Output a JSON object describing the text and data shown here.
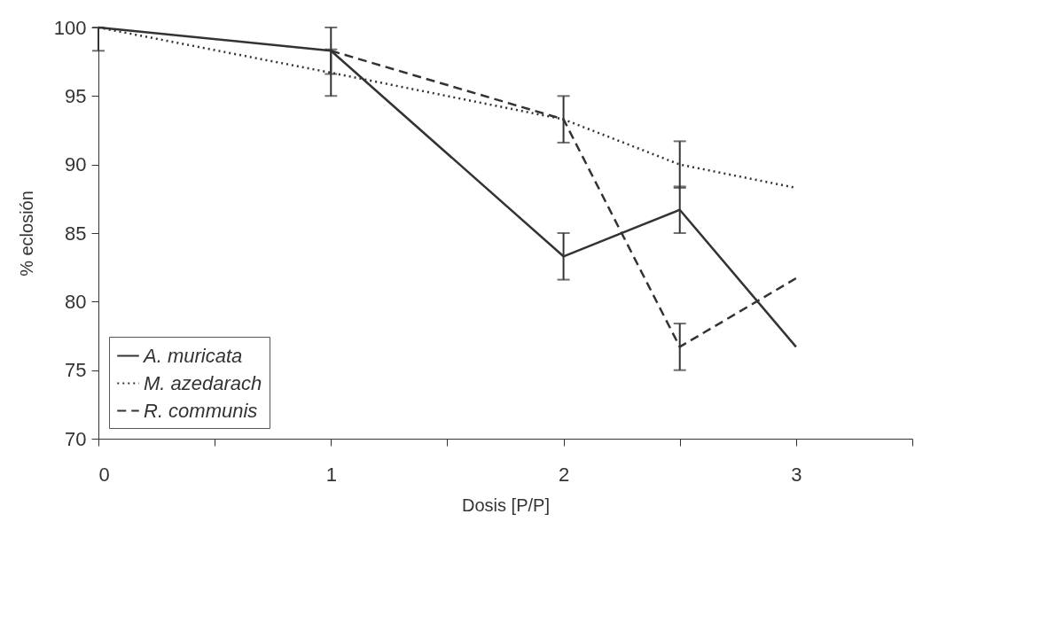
{
  "chart_data": {
    "type": "line",
    "xlabel": "Dosis [P/P]",
    "ylabel": "% eclosión",
    "x": [
      0,
      1,
      2,
      2.5,
      3
    ],
    "series": [
      {
        "name": "A. muricata",
        "color": "#333333",
        "line_style": "solid",
        "values": [
          100,
          98.3,
          83.3,
          86.7,
          76.7
        ],
        "errors": [
          null,
          1.7,
          1.7,
          1.7,
          null
        ]
      },
      {
        "name": "M. azedarach",
        "color": "#333333",
        "line_style": "dotted",
        "values": [
          100,
          96.7,
          93.3,
          90,
          88.3
        ],
        "errors": [
          [
            98.3,
            100
          ],
          1.7,
          null,
          1.7,
          null
        ]
      },
      {
        "name": "R. communis",
        "color": "#333333",
        "line_style": "dashed",
        "values": [
          null,
          98.3,
          93.3,
          76.7,
          81.7
        ],
        "errors": [
          null,
          null,
          1.7,
          1.7,
          null
        ]
      }
    ],
    "xlim": [
      0,
      3.5
    ],
    "xticks": [
      0,
      {
        "value": 0.5,
        "label": null
      },
      1,
      {
        "value": 1.5,
        "label": null
      },
      2,
      {
        "value": 2.5,
        "label": null
      },
      3,
      {
        "value": 3.5,
        "label": null
      }
    ],
    "ylim": [
      70,
      100
    ],
    "yticks": [
      70,
      75,
      80,
      85,
      90,
      95,
      100
    ],
    "grid": false,
    "legend": "bottom left",
    "marker": "none"
  }
}
